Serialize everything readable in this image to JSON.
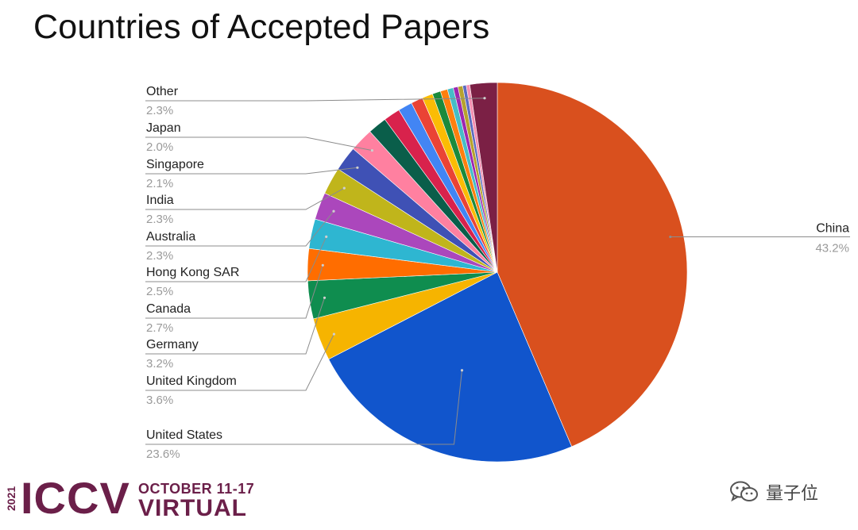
{
  "page": {
    "title": "Countries of Accepted Papers"
  },
  "chart_data": {
    "type": "pie",
    "title": "Countries of Accepted Papers",
    "start_angle": "12 o'clock",
    "direction": "clockwise",
    "slices": [
      {
        "label": "China",
        "value": 43.2,
        "pct_label": "43.2%",
        "color": "#d9501e",
        "labeled": true
      },
      {
        "label": "United States",
        "value": 23.6,
        "pct_label": "23.6%",
        "color": "#1155cc",
        "labeled": true
      },
      {
        "label": "United Kingdom",
        "value": 3.6,
        "pct_label": "3.6%",
        "color": "#f6b400",
        "labeled": true
      },
      {
        "label": "Germany",
        "value": 3.2,
        "pct_label": "3.2%",
        "color": "#0f8d4f",
        "labeled": true
      },
      {
        "label": "Canada",
        "value": 2.7,
        "pct_label": "2.7%",
        "color": "#ff6d00",
        "labeled": true
      },
      {
        "label": "Hong Kong SAR",
        "value": 2.5,
        "pct_label": "2.5%",
        "color": "#2eb6d1",
        "labeled": true
      },
      {
        "label": "Australia",
        "value": 2.3,
        "pct_label": "2.3%",
        "color": "#ab47bc",
        "labeled": true
      },
      {
        "label": "India",
        "value": 2.3,
        "pct_label": "2.3%",
        "color": "#c0b51b",
        "labeled": true
      },
      {
        "label": "Singapore",
        "value": 2.1,
        "pct_label": "2.1%",
        "color": "#3f51b5",
        "labeled": true
      },
      {
        "label": "Japan",
        "value": 2.0,
        "pct_label": "2.0%",
        "color": "#ff80a0",
        "labeled": true
      },
      {
        "label": "",
        "value": 1.6,
        "pct_label": "",
        "color": "#0a5e4a",
        "labeled": false
      },
      {
        "label": "",
        "value": 1.4,
        "pct_label": "",
        "color": "#d8224c",
        "labeled": false
      },
      {
        "label": "",
        "value": 1.2,
        "pct_label": "",
        "color": "#4285f4",
        "labeled": false
      },
      {
        "label": "",
        "value": 1.0,
        "pct_label": "",
        "color": "#ea4335",
        "labeled": false
      },
      {
        "label": "",
        "value": 0.9,
        "pct_label": "",
        "color": "#fbbc04",
        "labeled": false
      },
      {
        "label": "",
        "value": 0.7,
        "pct_label": "",
        "color": "#1b8a3c",
        "labeled": false
      },
      {
        "label": "",
        "value": 0.6,
        "pct_label": "",
        "color": "#ff7f0e",
        "labeled": false
      },
      {
        "label": "",
        "value": 0.5,
        "pct_label": "",
        "color": "#46bdc6",
        "labeled": false
      },
      {
        "label": "",
        "value": 0.4,
        "pct_label": "",
        "color": "#9c27b0",
        "labeled": false
      },
      {
        "label": "",
        "value": 0.4,
        "pct_label": "",
        "color": "#b7a22e",
        "labeled": false
      },
      {
        "label": "",
        "value": 0.3,
        "pct_label": "",
        "color": "#5c6bc0",
        "labeled": false
      },
      {
        "label": "",
        "value": 0.3,
        "pct_label": "",
        "color": "#f48fb1",
        "labeled": false
      },
      {
        "label": "Other",
        "value": 2.3,
        "pct_label": "2.3%",
        "color": "#7b2045",
        "labeled": true
      }
    ]
  },
  "logo": {
    "year": "2021",
    "name": "ICCV",
    "dates": "OCTOBER 11-17",
    "mode": "VIRTUAL"
  },
  "watermark": {
    "text": "量子位",
    "icon": "wechat-icon"
  }
}
